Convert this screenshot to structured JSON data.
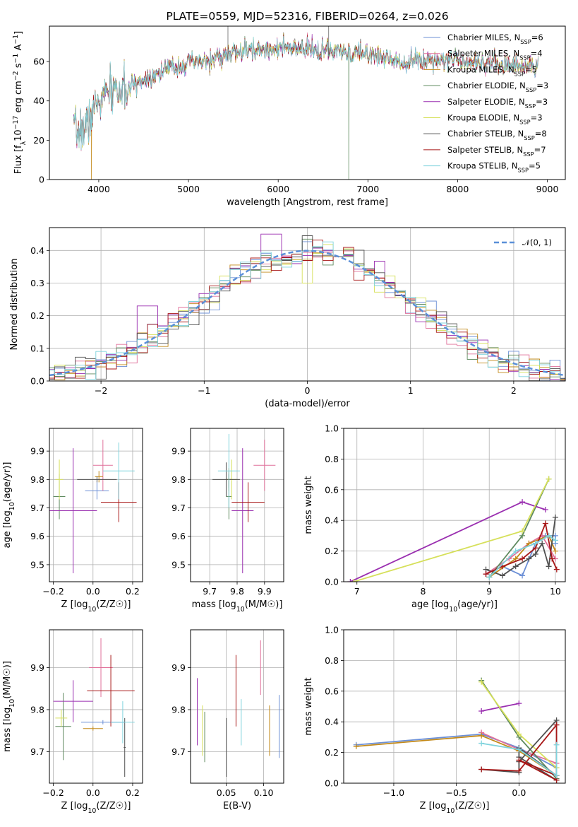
{
  "title": "PLATE=0559, MJD=52316, FIBERID=0264, z=0.026",
  "colors": [
    "#6b8fd6",
    "#e0709a",
    "#c38a1a",
    "#5f8a5f",
    "#9a2fb0",
    "#d6e05a",
    "#505050",
    "#a81818",
    "#7fd3dd"
  ],
  "chart_data": [
    {
      "id": "spectrum",
      "type": "line",
      "xlabel": "wavelength [Angstrom, rest frame]",
      "ylabel": "Flux [f",
      "ylabel_parts": [
        "Flux [f",
        "λ",
        "10",
        "−17",
        " erg cm",
        "−2",
        " s",
        "−1",
        " A",
        "−1",
        "]"
      ],
      "xlim": [
        3450,
        9200
      ],
      "ylim": [
        0,
        78
      ],
      "xticks": [
        4000,
        5000,
        6000,
        7000,
        8000,
        9000
      ],
      "yticks": [
        0,
        20,
        40,
        60
      ],
      "x_range": [
        3720,
        8900
      ],
      "continuum": [
        [
          3720,
          24
        ],
        [
          3800,
          25
        ],
        [
          3880,
          28
        ],
        [
          3930,
          34
        ],
        [
          4000,
          40
        ],
        [
          4100,
          44
        ],
        [
          4200,
          46
        ],
        [
          4300,
          44
        ],
        [
          4400,
          49
        ],
        [
          4600,
          53
        ],
        [
          4800,
          57
        ],
        [
          5000,
          59
        ],
        [
          5200,
          60
        ],
        [
          5400,
          63
        ],
        [
          5600,
          65
        ],
        [
          5800,
          66
        ],
        [
          6000,
          67
        ],
        [
          6200,
          66
        ],
        [
          6400,
          66
        ],
        [
          6600,
          65
        ],
        [
          6800,
          64
        ],
        [
          7000,
          64
        ],
        [
          7200,
          62
        ],
        [
          7400,
          60
        ],
        [
          7600,
          61
        ],
        [
          7800,
          61
        ],
        [
          8000,
          61
        ],
        [
          8200,
          60
        ],
        [
          8400,
          59
        ],
        [
          8600,
          58
        ],
        [
          8900,
          58
        ]
      ],
      "legend": [
        {
          "name": "Chabrier MILES, N",
          "sub": "SSP",
          "suffix": "=6"
        },
        {
          "name": "Salpeter MILES, N",
          "sub": "SSP",
          "suffix": "=4"
        },
        {
          "name": "Kroupa MILES, N",
          "sub": "SSP",
          "suffix": "=5"
        },
        {
          "name": "Chabrier ELODIE, N",
          "sub": "SSP",
          "suffix": "=3"
        },
        {
          "name": "Salpeter ELODIE, N",
          "sub": "SSP",
          "suffix": "=3"
        },
        {
          "name": "Kroupa ELODIE, N",
          "sub": "SSP",
          "suffix": "=3"
        },
        {
          "name": "Chabrier STELIB, N",
          "sub": "SSP",
          "suffix": "=8"
        },
        {
          "name": "Salpeter STELIB, N",
          "sub": "SSP",
          "suffix": "=7"
        },
        {
          "name": "Kroupa STELIB, N",
          "sub": "SSP",
          "suffix": "=5"
        }
      ],
      "legend_loc": "upper-right"
    },
    {
      "id": "residuals",
      "type": "histogram",
      "xlabel": "(data-model)/error",
      "ylabel": "Normed distribution",
      "xlim": [
        -2.5,
        2.5
      ],
      "ylim": [
        0,
        0.47
      ],
      "xticks": [
        -2,
        -1,
        0,
        1,
        2
      ],
      "xtick_labels": [
        "−2",
        "−1",
        "0",
        "1",
        "2"
      ],
      "yticks": [
        0.0,
        0.1,
        0.2,
        0.3,
        0.4
      ],
      "ytick_labels": [
        "0.0",
        "0.1",
        "0.2",
        "0.3",
        "0.4"
      ],
      "grid": true,
      "bin_width": 0.1,
      "reference_legend": "𝒩(0, 1)",
      "legend_loc": "upper-right"
    },
    {
      "id": "age-vs-Z",
      "type": "errorbar",
      "xlabel": "Z [log₁₀(Z/Z☉)]",
      "ylabel": "age  [log₁₀(age/yr)]",
      "xlim": [
        -0.22,
        0.25
      ],
      "ylim": [
        9.44,
        9.98
      ],
      "xticks": [
        -0.2,
        0.0,
        0.2
      ],
      "xtick_labels": [
        "−0.2",
        "0.0",
        "0.2"
      ],
      "yticks": [
        9.5,
        9.6,
        9.7,
        9.8,
        9.9
      ],
      "grid": true,
      "points": [
        {
          "x": 0.02,
          "xerr": 0.06,
          "y": 9.76,
          "yerr": 0.03
        },
        {
          "x": 0.05,
          "xerr": 0.05,
          "y": 9.85,
          "yerr": 0.09
        },
        {
          "x": 0.03,
          "xerr": 0.02,
          "y": 9.81,
          "yerr": 0.02
        },
        {
          "x": -0.17,
          "xerr": 0.03,
          "y": 9.74,
          "yerr": 0.08
        },
        {
          "x": -0.1,
          "xerr": 0.12,
          "y": 9.69,
          "yerr": 0.22
        },
        {
          "x": -0.17,
          "xerr": 0.02,
          "y": 9.8,
          "yerr": 0.07
        },
        {
          "x": 0.02,
          "xerr": 0.1,
          "y": 9.8,
          "yerr": 0.01
        },
        {
          "x": 0.13,
          "xerr": 0.09,
          "y": 9.72,
          "yerr": 0.07
        },
        {
          "x": 0.13,
          "xerr": 0.08,
          "y": 9.83,
          "yerr": 0.1
        }
      ]
    },
    {
      "id": "age-vs-mass",
      "type": "errorbar",
      "xlabel": "mass [log₁₀(M/M☉)]",
      "ylabel": "",
      "xlim": [
        9.63,
        9.97
      ],
      "ylim": [
        9.44,
        9.98
      ],
      "xticks": [
        9.7,
        9.8,
        9.9
      ],
      "yticks": [
        9.5,
        9.6,
        9.7,
        9.8,
        9.9
      ],
      "grid": true,
      "points": [
        {
          "x": 9.77,
          "xerr": 0.01,
          "y": 9.8,
          "yerr": 0.03
        },
        {
          "x": 9.9,
          "xerr": 0.04,
          "y": 9.85,
          "yerr": 0.09
        },
        {
          "x": 9.77,
          "xerr": 0.01,
          "y": 9.8,
          "yerr": 0.04
        },
        {
          "x": 9.77,
          "xerr": 0.01,
          "y": 9.74,
          "yerr": 0.08
        },
        {
          "x": 9.82,
          "xerr": 0.04,
          "y": 9.69,
          "yerr": 0.22
        },
        {
          "x": 9.78,
          "xerr": 0.02,
          "y": 9.8,
          "yerr": 0.07
        },
        {
          "x": 9.76,
          "xerr": 0.05,
          "y": 9.8,
          "yerr": 0.06
        },
        {
          "x": 9.84,
          "xerr": 0.06,
          "y": 9.72,
          "yerr": 0.07
        },
        {
          "x": 9.77,
          "xerr": 0.04,
          "y": 9.83,
          "yerr": 0.13
        }
      ]
    },
    {
      "id": "weight-vs-age",
      "type": "line",
      "xlabel": "age  [log₁₀(age/yr)]",
      "ylabel": "mass weight",
      "xlim": [
        6.8,
        10.15
      ],
      "ylim": [
        0,
        1
      ],
      "xticks": [
        7,
        8,
        9,
        10
      ],
      "yticks": [
        0.0,
        0.2,
        0.4,
        0.6,
        0.8,
        1.0
      ],
      "ytick_labels": [
        "0.0",
        "0.2",
        "0.4",
        "0.6",
        "0.8",
        "1.0"
      ],
      "grid": true,
      "series": [
        {
          "x": [
            8.95,
            9.2,
            9.5,
            9.7,
            9.85,
            10.0,
            10.0
          ],
          "y": [
            0.05,
            0.1,
            0.04,
            0.25,
            0.3,
            0.3,
            0.25
          ]
        },
        {
          "x": [
            8.95,
            9.3,
            9.6,
            9.8,
            10.0
          ],
          "y": [
            0.05,
            0.15,
            0.25,
            0.3,
            0.15
          ]
        },
        {
          "x": [
            9.0,
            9.4,
            9.6,
            9.9,
            10.0
          ],
          "y": [
            0.03,
            0.15,
            0.25,
            0.3,
            0.2
          ]
        },
        {
          "x": [
            9.0,
            9.5,
            9.9
          ],
          "y": [
            0.03,
            0.3,
            0.67
          ]
        },
        {
          "x": [
            6.9,
            9.5,
            9.85
          ],
          "y": [
            0.0,
            0.52,
            0.47
          ]
        },
        {
          "x": [
            6.95,
            9.5,
            9.9
          ],
          "y": [
            0.0,
            0.33,
            0.67
          ]
        },
        {
          "x": [
            8.95,
            9.2,
            9.4,
            9.6,
            9.7,
            9.8,
            9.9,
            10.0
          ],
          "y": [
            0.08,
            0.04,
            0.1,
            0.15,
            0.18,
            0.25,
            0.1,
            0.42
          ]
        },
        {
          "x": [
            8.95,
            9.2,
            9.5,
            9.7,
            9.85,
            9.95,
            10.02
          ],
          "y": [
            0.05,
            0.1,
            0.15,
            0.22,
            0.38,
            0.15,
            0.08
          ]
        },
        {
          "x": [
            9.0,
            9.4,
            9.7,
            9.9,
            10.0
          ],
          "y": [
            0.03,
            0.2,
            0.25,
            0.3,
            0.27
          ]
        }
      ]
    },
    {
      "id": "mass-vs-Z",
      "type": "errorbar",
      "xlabel": "Z [log₁₀(Z/Z☉)]",
      "ylabel": "mass [log₁₀(M/M☉)]",
      "xlim": [
        -0.22,
        0.25
      ],
      "ylim": [
        9.625,
        9.99
      ],
      "xticks": [
        -0.2,
        0.0,
        0.2
      ],
      "xtick_labels": [
        "−0.2",
        "0.0",
        "0.2"
      ],
      "yticks": [
        9.7,
        9.8,
        9.9
      ],
      "grid": true,
      "points": [
        {
          "x": 0.05,
          "xerr": 0.11,
          "y": 9.77,
          "yerr": 0.005
        },
        {
          "x": 0.04,
          "xerr": 0.06,
          "y": 9.9,
          "yerr": 0.07
        },
        {
          "x": 0.0,
          "xerr": 0.05,
          "y": 9.755,
          "yerr": 0.005
        },
        {
          "x": -0.15,
          "xerr": 0.04,
          "y": 9.76,
          "yerr": 0.08
        },
        {
          "x": -0.1,
          "xerr": 0.1,
          "y": 9.82,
          "yerr": 0.05
        },
        {
          "x": -0.16,
          "xerr": 0.03,
          "y": 9.78,
          "yerr": 0.02
        },
        {
          "x": 0.16,
          "xerr": 0.005,
          "y": 9.71,
          "yerr": 0.07
        },
        {
          "x": 0.09,
          "xerr": 0.12,
          "y": 9.845,
          "yerr": 0.085
        },
        {
          "x": 0.15,
          "xerr": 0.06,
          "y": 9.77,
          "yerr": 0.05
        }
      ]
    },
    {
      "id": "mass-vs-EBV",
      "type": "errorbar",
      "xlabel": "E(B-V)",
      "ylabel": "",
      "xlim": [
        0.002,
        0.127
      ],
      "ylim": [
        9.625,
        9.99
      ],
      "xticks": [
        0.05,
        0.1
      ],
      "xtick_labels": [
        "0.05",
        "0.10"
      ],
      "yticks": [
        9.7,
        9.8,
        9.9
      ],
      "grid": true,
      "points": [
        {
          "x": 0.121,
          "y": 9.76,
          "yerr": 0.075
        },
        {
          "x": 0.096,
          "y": 9.9,
          "yerr": 0.065
        },
        {
          "x": 0.108,
          "y": 9.75,
          "yerr": 0.06
        },
        {
          "x": 0.021,
          "y": 9.735,
          "yerr": 0.06
        },
        {
          "x": 0.011,
          "y": 9.795,
          "yerr": 0.08
        },
        {
          "x": 0.018,
          "y": 9.75,
          "yerr": 0.06
        },
        {
          "x": 0.05,
          "y": 9.71,
          "yerr": 0.07
        },
        {
          "x": 0.063,
          "y": 9.845,
          "yerr": 0.085
        },
        {
          "x": 0.07,
          "y": 9.77,
          "yerr": 0.055
        }
      ]
    },
    {
      "id": "weight-vs-Z",
      "type": "line",
      "xlabel": "Z [log₁₀(Z/Z☉)]",
      "ylabel": "mass weight",
      "xlim": [
        -1.4,
        0.37
      ],
      "ylim": [
        0,
        1
      ],
      "xticks": [
        -1.0,
        -0.5,
        0.0
      ],
      "xtick_labels": [
        "−1.0",
        "−0.5",
        "0.0"
      ],
      "yticks": [
        0.0,
        0.2,
        0.4,
        0.6,
        0.8,
        1.0
      ],
      "ytick_labels": [
        "0.0",
        "0.2",
        "0.4",
        "0.6",
        "0.8",
        "1.0"
      ],
      "grid": true,
      "series": [
        {
          "x": [
            -1.3,
            -0.3,
            0.0,
            0.3
          ],
          "y": [
            0.25,
            0.32,
            0.23,
            0.1
          ]
        },
        {
          "x": [
            -0.3,
            0.0,
            0.3
          ],
          "y": [
            0.33,
            0.22,
            0.13
          ]
        },
        {
          "x": [
            -1.3,
            -0.3,
            0.0,
            0.3
          ],
          "y": [
            0.24,
            0.31,
            0.21,
            0.05
          ]
        },
        {
          "x": [
            -0.3,
            0.0,
            0.3
          ],
          "y": [
            0.67,
            0.3,
            0.03
          ]
        },
        {
          "x": [
            -0.3,
            0.0
          ],
          "y": [
            0.47,
            0.52
          ]
        },
        {
          "x": [
            -0.3,
            0.0,
            0.3
          ],
          "y": [
            0.66,
            0.32,
            0.1
          ]
        },
        {
          "x": [
            -0.3,
            0.0,
            0.0,
            0.3,
            0.3,
            0.0,
            0.0,
            0.3
          ],
          "y": [
            0.09,
            0.07,
            0.14,
            0.41,
            0.05,
            0.23,
            0.17,
            0.02
          ]
        },
        {
          "x": [
            -0.3,
            0.0,
            0.3,
            0.3,
            0.0,
            0.3
          ],
          "y": [
            0.09,
            0.08,
            0.38,
            0.05,
            0.15,
            0.02
          ]
        },
        {
          "x": [
            -0.3,
            0.0,
            0.3,
            0.3
          ],
          "y": [
            0.26,
            0.22,
            0.05,
            0.25
          ]
        }
      ]
    }
  ]
}
